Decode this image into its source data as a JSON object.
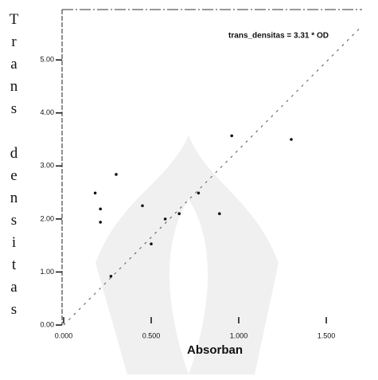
{
  "chart_data": {
    "type": "scatter",
    "x_label": "Absorban",
    "y_label": "Trans densitas",
    "x": [
      0.18,
      0.21,
      0.21,
      0.3,
      0.27,
      0.45,
      0.5,
      0.58,
      0.66,
      0.77,
      0.89,
      0.96,
      1.3
    ],
    "values": [
      2.49,
      2.19,
      1.94,
      2.84,
      0.92,
      2.25,
      1.53,
      2.0,
      2.1,
      2.49,
      2.1,
      3.57,
      3.5
    ],
    "color": "#111111",
    "xlim": [
      0,
      1.7
    ],
    "ylim": [
      0,
      5.95
    ],
    "xticks": [
      {
        "value": 0,
        "label": "0.000"
      },
      {
        "value": 0.5,
        "label": "0.500"
      },
      {
        "value": 1,
        "label": "1.000"
      },
      {
        "value": 1.5,
        "label": "1.500"
      }
    ],
    "yticks": [
      {
        "value": 0,
        "label": "0.00"
      },
      {
        "value": 1,
        "label": "1.00"
      },
      {
        "value": 2,
        "label": "2.00"
      },
      {
        "value": 3,
        "label": "3.00"
      },
      {
        "value": 4,
        "label": "4.00"
      },
      {
        "value": 5,
        "label": "5.00"
      }
    ],
    "fit_line": {
      "slope": 3.31,
      "label": "trans_densitas = 3.31 * OD"
    },
    "grid": false
  }
}
